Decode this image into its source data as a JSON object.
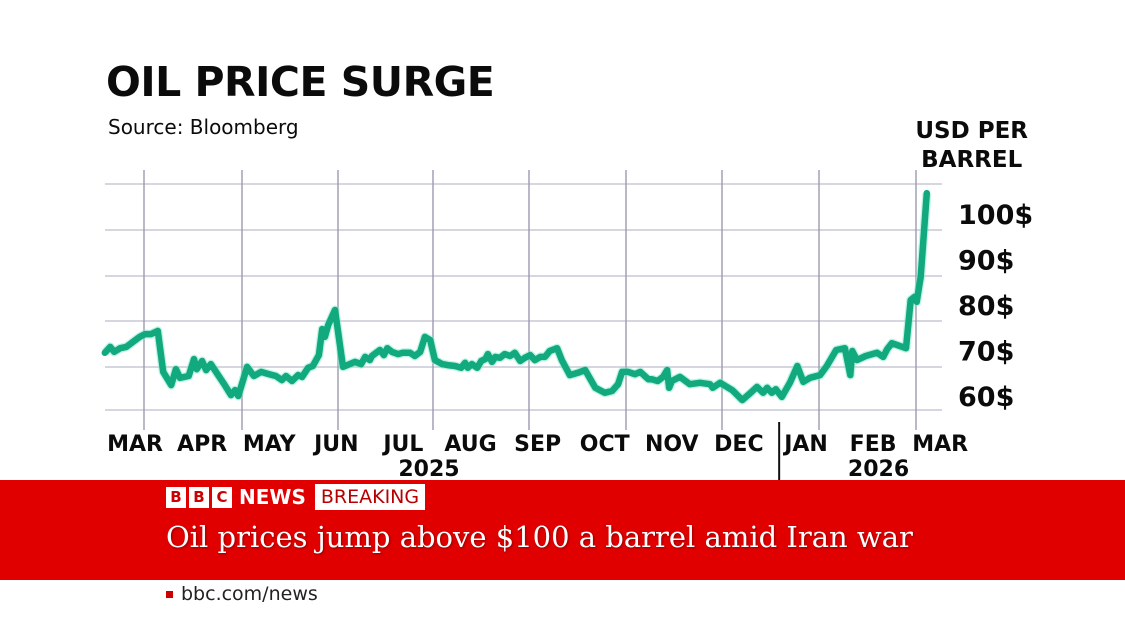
{
  "chart_data": {
    "type": "line",
    "title": "OIL PRICE SURGE",
    "source": "Source: Bloomberg",
    "ylabel": [
      "USD PER",
      "BARREL"
    ],
    "ylim": [
      58,
      112
    ],
    "y_ticks": [
      {
        "value": 100,
        "label": "100$"
      },
      {
        "value": 90,
        "label": "90$"
      },
      {
        "value": 80,
        "label": "80$"
      },
      {
        "value": 70,
        "label": "70$"
      },
      {
        "value": 60,
        "label": "60$"
      }
    ],
    "x_unit": "months since 1 Mar 2025",
    "x_ticks": [
      {
        "t": 0,
        "label": "MAR"
      },
      {
        "t": 1,
        "label": "APR"
      },
      {
        "t": 2,
        "label": "MAY"
      },
      {
        "t": 3,
        "label": "JUN"
      },
      {
        "t": 4,
        "label": "JUL"
      },
      {
        "t": 5,
        "label": "AUG"
      },
      {
        "t": 6,
        "label": "SEP"
      },
      {
        "t": 7,
        "label": "OCT"
      },
      {
        "t": 8,
        "label": "NOV"
      },
      {
        "t": 9,
        "label": "DEC"
      },
      {
        "t": 10,
        "label": "JAN"
      },
      {
        "t": 11,
        "label": "FEB"
      },
      {
        "t": 12,
        "label": "MAR"
      }
    ],
    "year_labels": [
      {
        "t": 4.5,
        "label": "2025"
      },
      {
        "t": 11.2,
        "label": "2026"
      }
    ],
    "year_divider_t": 9.6,
    "grid": true,
    "color": "#12a97f",
    "series": [
      {
        "name": "Oil price (USD per barrel)",
        "t": [
          -0.45,
          -0.37,
          -0.31,
          -0.22,
          -0.13,
          -0.03,
          0.07,
          0.15,
          0.24,
          0.34,
          0.42,
          0.54,
          0.61,
          0.67,
          0.8,
          0.88,
          0.92,
          1.0,
          1.06,
          1.13,
          1.33,
          1.43,
          1.49,
          1.54,
          1.67,
          1.77,
          1.88,
          2.0,
          2.1,
          2.19,
          2.25,
          2.34,
          2.43,
          2.49,
          2.58,
          2.65,
          2.74,
          2.79,
          2.83,
          2.88,
          2.98,
          3.1,
          3.28,
          3.37,
          3.43,
          3.5,
          3.53,
          3.65,
          3.71,
          3.76,
          3.83,
          3.92,
          3.99,
          4.1,
          4.17,
          4.25,
          4.32,
          4.4,
          4.47,
          4.58,
          4.66,
          4.77,
          4.86,
          4.92,
          4.96,
          5.02,
          5.1,
          5.16,
          5.22,
          5.26,
          5.32,
          5.37,
          5.44,
          5.51,
          5.59,
          5.66,
          5.74,
          5.81,
          5.89,
          5.96,
          6.04,
          6.11,
          6.18,
          6.29,
          6.36,
          6.48,
          6.6,
          6.71,
          6.86,
          7.0,
          7.11,
          7.2,
          7.26,
          7.35,
          7.45,
          7.53,
          7.65,
          7.7,
          7.79,
          7.87,
          7.93,
          7.96,
          8.0,
          8.12,
          8.27,
          8.42,
          8.57,
          8.61,
          8.72,
          8.9,
          9.05,
          9.19,
          9.27,
          9.36,
          9.42,
          9.49,
          9.55,
          9.64,
          9.76,
          9.87,
          9.96,
          10.06,
          10.21,
          10.31,
          10.45,
          10.58,
          10.66,
          10.69,
          10.76,
          10.89,
          11.06,
          11.15,
          11.21,
          11.28,
          11.49,
          11.56,
          11.62,
          11.65,
          11.71,
          11.8
        ],
        "values": [
          69.5,
          70.8,
          69.7,
          70.5,
          70.8,
          71.9,
          73.0,
          73.6,
          73.6,
          74.3,
          65.3,
          62.4,
          65.9,
          64.0,
          64.4,
          68.1,
          65.9,
          67.7,
          65.7,
          67.0,
          62.6,
          60.2,
          61.3,
          60.0,
          66.4,
          64.4,
          65.3,
          64.8,
          64.4,
          63.5,
          64.4,
          63.3,
          64.6,
          64.2,
          66.2,
          66.6,
          69.0,
          74.7,
          73.0,
          75.6,
          78.9,
          66.4,
          67.5,
          67.0,
          68.6,
          67.9,
          68.8,
          70.1,
          69.0,
          70.5,
          69.7,
          69.2,
          69.5,
          69.5,
          68.8,
          69.7,
          73.0,
          72.3,
          67.9,
          67.0,
          66.8,
          66.6,
          66.2,
          67.3,
          66.2,
          67.0,
          66.2,
          67.7,
          68.1,
          69.2,
          67.5,
          68.6,
          68.4,
          69.2,
          68.8,
          69.5,
          67.7,
          68.4,
          69.0,
          67.9,
          68.6,
          68.6,
          69.9,
          70.5,
          67.9,
          64.6,
          65.1,
          65.7,
          61.8,
          60.7,
          61.1,
          62.6,
          65.3,
          65.3,
          64.8,
          65.3,
          63.7,
          63.7,
          63.3,
          64.2,
          65.7,
          61.8,
          63.3,
          64.2,
          62.6,
          62.9,
          62.6,
          61.8,
          62.9,
          61.3,
          59.1,
          60.9,
          62.0,
          60.7,
          61.8,
          60.7,
          61.5,
          59.8,
          62.9,
          66.6,
          63.1,
          64.0,
          64.6,
          66.6,
          70.1,
          70.5,
          64.6,
          69.9,
          67.9,
          68.8,
          69.5,
          68.6,
          70.3,
          71.6,
          70.5,
          81.1,
          81.8,
          80.7,
          86.2,
          104.6
        ]
      }
    ]
  },
  "banner": {
    "bbc_letters": [
      "B",
      "B",
      "C"
    ],
    "news": "NEWS",
    "breaking": "BREAKING",
    "headline": "Oil prices jump above $100 a barrel amid Iran war",
    "url": "bbc.com/news",
    "color": "#e00000"
  }
}
